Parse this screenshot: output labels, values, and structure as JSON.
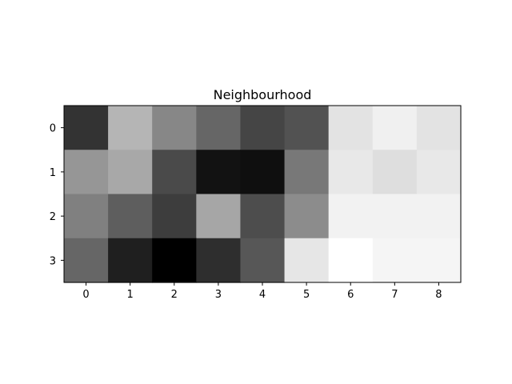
{
  "chart_data": {
    "type": "heatmap",
    "title": "Neighbourhood",
    "xlabel": "",
    "ylabel": "",
    "colormap": "gray",
    "x_ticks": [
      "0",
      "1",
      "2",
      "3",
      "4",
      "5",
      "6",
      "7",
      "8"
    ],
    "y_ticks": [
      "0",
      "1",
      "2",
      "3"
    ],
    "values": [
      [
        0.2,
        0.71,
        0.53,
        0.4,
        0.27,
        0.32,
        0.89,
        0.94,
        0.89
      ],
      [
        0.59,
        0.66,
        0.29,
        0.07,
        0.06,
        0.47,
        0.91,
        0.87,
        0.91
      ],
      [
        0.5,
        0.37,
        0.24,
        0.65,
        0.3,
        0.55,
        0.95,
        0.95,
        0.95
      ],
      [
        0.4,
        0.12,
        0.0,
        0.18,
        0.34,
        0.9,
        1.0,
        0.96,
        0.96
      ]
    ],
    "vmin": 0,
    "vmax": 1,
    "grid": false
  }
}
